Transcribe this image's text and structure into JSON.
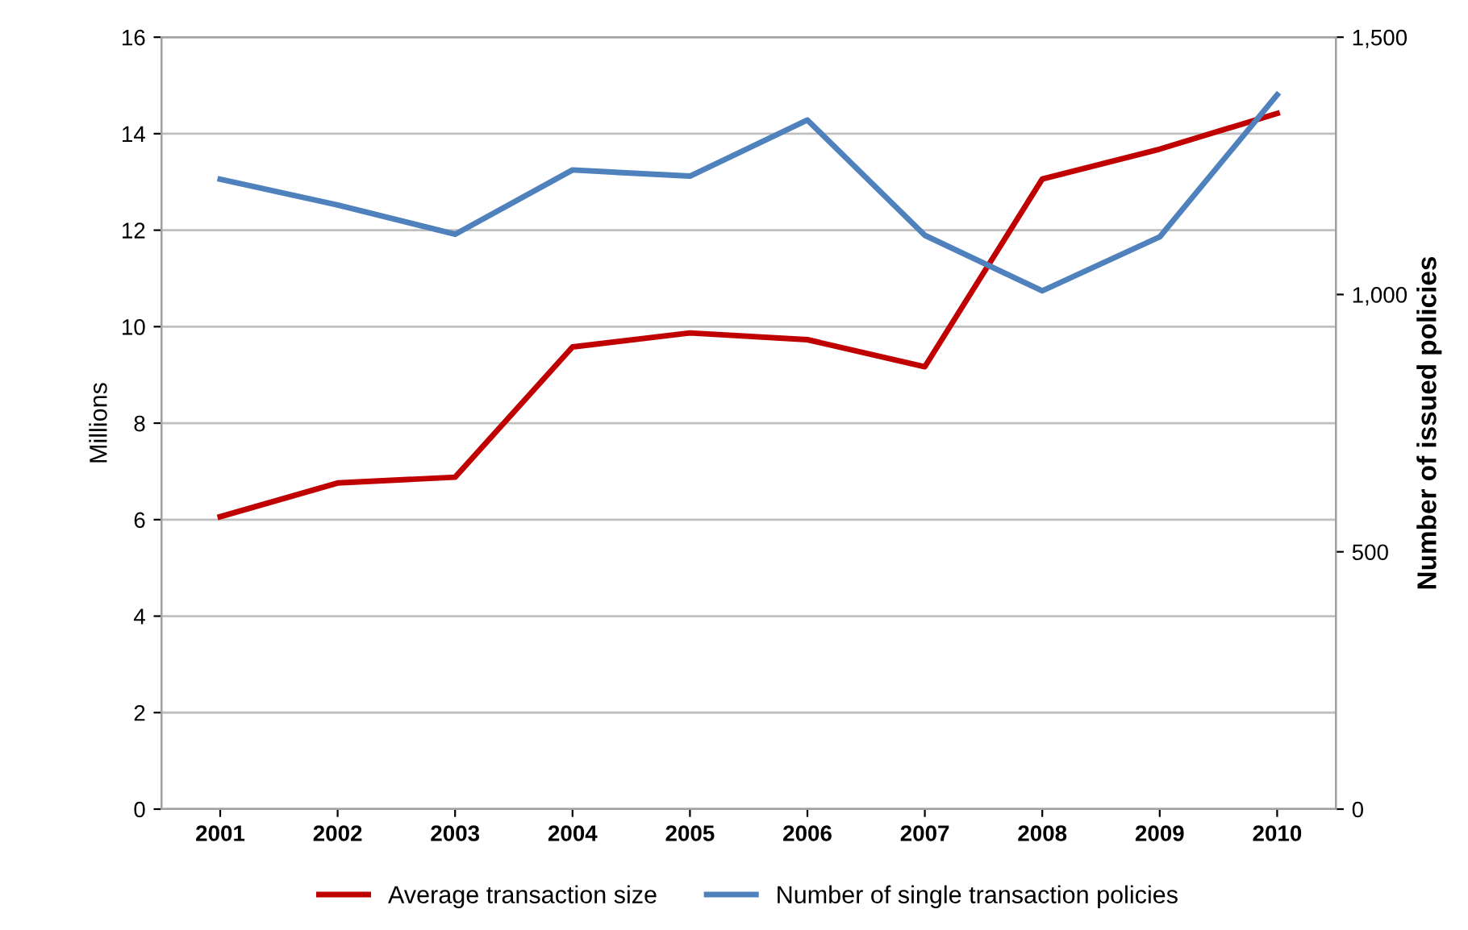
{
  "chart_data": {
    "type": "line",
    "ylabel": "Millions",
    "y2label": "Number of issued policies",
    "categories": [
      "2001",
      "2002",
      "2003",
      "2004",
      "2005",
      "2006",
      "2007",
      "2008",
      "2009",
      "2010"
    ],
    "series": [
      {
        "name": "Average transaction size",
        "color": "#c00000",
        "values": [
          6.06,
          6.76,
          6.88,
          9.58,
          9.87,
          9.73,
          9.17,
          13.06,
          13.68,
          14.42
        ]
      },
      {
        "name": "Number of single transaction policies",
        "color": "#4f81bd",
        "axis": "y2",
        "values": [
          1224,
          1174,
          1117,
          1242,
          1230,
          1339,
          1115,
          1007,
          1112,
          1388
        ]
      }
    ],
    "ylim": [
      0,
      16
    ],
    "yticks": [
      0,
      2,
      4,
      6,
      8,
      10,
      12,
      14,
      16
    ],
    "y2lim": [
      0,
      1500
    ],
    "y2ticks": [
      0,
      {
        "value": 500,
        "label": "500"
      },
      {
        "value": 1000,
        "label": "1,000"
      },
      {
        "value": 1500,
        "label": "1,500"
      }
    ],
    "grid": "y",
    "legend": "bottom",
    "marker": "none",
    "line_style": "solid"
  }
}
